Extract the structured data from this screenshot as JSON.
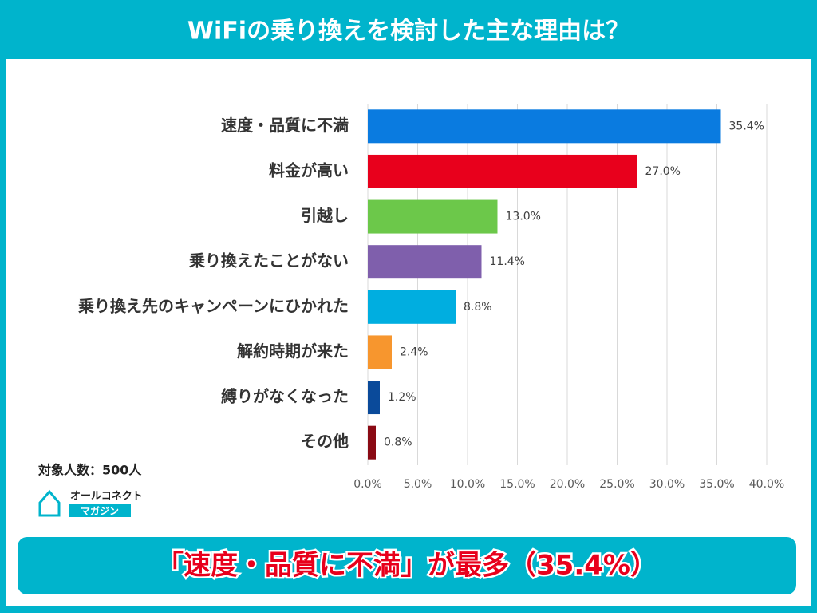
{
  "chart_data": {
    "type": "barh",
    "title": "WiFiの乗り換えを検討した主な理由は？",
    "categories": [
      "速度・品質に不満",
      "料金が高い",
      "引越し",
      "乗り換えたことがない",
      "乗り換え先のキャンペーンにひかれた",
      "解約時期が来た",
      "縛りがなくなった",
      "その他"
    ],
    "values": [
      35.4,
      27.0,
      13.0,
      11.4,
      8.8,
      2.4,
      1.2,
      0.8
    ],
    "value_labels": [
      "35.4%",
      "27.0%",
      "13.0%",
      "11.4%",
      "8.8%",
      "2.4%",
      "1.2%",
      "0.8%"
    ],
    "colors": [
      "#0a7be0",
      "#e8001c",
      "#6cc84a",
      "#7f5fac",
      "#00aee0",
      "#f7962e",
      "#0a4a9a",
      "#8a0a14"
    ],
    "xlim": [
      0,
      40
    ],
    "xticks": [
      {
        "value": 0,
        "label": "0.0%"
      },
      {
        "value": 5,
        "label": "5.0%"
      },
      {
        "value": 10,
        "label": "10.0%"
      },
      {
        "value": 15,
        "label": "15.0%"
      },
      {
        "value": 20,
        "label": "20.0%"
      },
      {
        "value": 25,
        "label": "25.0%"
      },
      {
        "value": 30,
        "label": "30.0%"
      },
      {
        "value": 35,
        "label": "35.0%"
      },
      {
        "value": 40,
        "label": "40.0%"
      }
    ],
    "grid": true,
    "note": "対象人数：500人",
    "logo": [
      "オールコネクト",
      "マガジン"
    ],
    "headline": "「速度・品質に不満」が最多（35.4%）"
  }
}
